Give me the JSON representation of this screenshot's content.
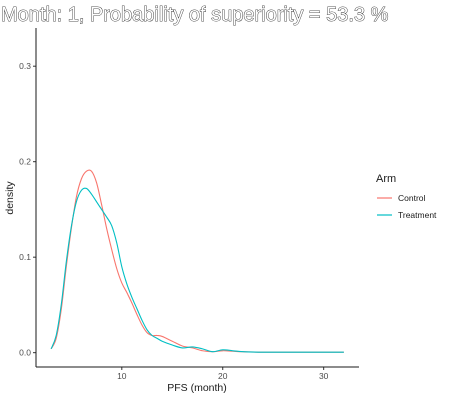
{
  "chart_data": {
    "type": "line",
    "title": "Month: 1, Probability of superiority =  53.3 %",
    "xlabel": "PFS (month)",
    "ylabel": "density",
    "xlim": [
      1.5,
      33.5
    ],
    "ylim": [
      -0.015,
      0.34
    ],
    "x_ticks": [
      10,
      20,
      30
    ],
    "y_ticks": [
      0.0,
      0.1,
      0.2,
      0.3
    ],
    "x_tick_labels": [
      "10",
      "20",
      "30"
    ],
    "y_tick_labels": [
      "0.0",
      "0.1",
      "0.2",
      "0.3"
    ],
    "grid": false,
    "legend_position": "right",
    "legend_title": "Arm",
    "series": [
      {
        "name": "Control",
        "color": "#F8766D",
        "x": [
          3.0,
          3.5,
          4.0,
          4.5,
          5.0,
          5.5,
          6.0,
          6.5,
          7.0,
          7.5,
          8.0,
          8.5,
          9.0,
          9.5,
          10.0,
          10.5,
          11.0,
          11.5,
          12.0,
          12.5,
          13.0,
          13.5,
          14.0,
          15.0,
          16.0,
          17.0,
          18.0,
          19.0,
          20.0,
          21.0,
          22.0,
          24.0,
          27.0,
          30.0,
          32.0
        ],
        "y": [
          0.004,
          0.015,
          0.045,
          0.09,
          0.13,
          0.163,
          0.182,
          0.19,
          0.19,
          0.178,
          0.155,
          0.13,
          0.108,
          0.088,
          0.073,
          0.063,
          0.052,
          0.04,
          0.029,
          0.021,
          0.018,
          0.018,
          0.017,
          0.012,
          0.007,
          0.005,
          0.002,
          0.001,
          0.002,
          0.0015,
          0.001,
          0.0005,
          0.0005,
          0.0005,
          0.0005
        ]
      },
      {
        "name": "Treatment",
        "color": "#00BFC4",
        "x": [
          3.0,
          3.5,
          4.0,
          4.5,
          5.0,
          5.5,
          6.0,
          6.5,
          7.0,
          7.5,
          8.0,
          8.5,
          9.0,
          9.5,
          10.0,
          10.5,
          11.0,
          11.5,
          12.0,
          12.5,
          13.0,
          13.5,
          14.0,
          15.0,
          16.0,
          17.0,
          18.0,
          19.0,
          20.0,
          21.0,
          22.0,
          24.0,
          27.0,
          30.0,
          32.0
        ],
        "y": [
          0.004,
          0.018,
          0.05,
          0.095,
          0.132,
          0.158,
          0.17,
          0.172,
          0.166,
          0.158,
          0.15,
          0.142,
          0.133,
          0.115,
          0.09,
          0.072,
          0.058,
          0.046,
          0.034,
          0.024,
          0.018,
          0.015,
          0.012,
          0.008,
          0.005,
          0.006,
          0.004,
          0.001,
          0.003,
          0.002,
          0.001,
          0.0005,
          0.0005,
          0.0005,
          0.0005
        ]
      }
    ]
  }
}
